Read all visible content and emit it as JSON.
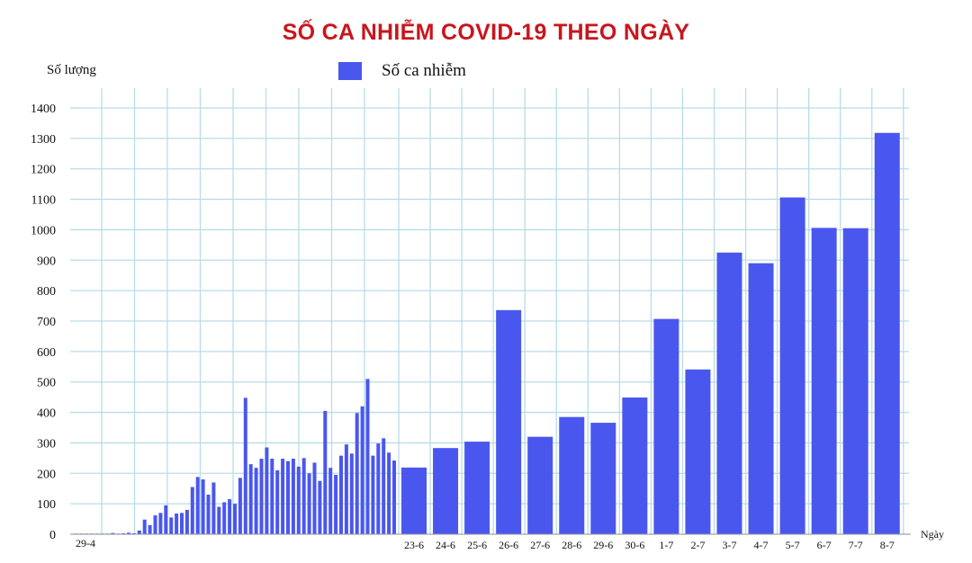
{
  "chart_data": {
    "type": "bar",
    "title": "SỐ CA NHIỄM COVID-19 THEO NGÀY",
    "ylabel": "Số lượng",
    "xlabel": "Ngày",
    "legend": "Số ca nhiễm",
    "ylim": [
      0,
      1400
    ],
    "yticks": [
      0,
      100,
      200,
      300,
      400,
      500,
      600,
      700,
      800,
      900,
      1000,
      1100,
      1200,
      1300,
      1400
    ],
    "grid": true,
    "bar_color": "#4a57ee",
    "early_start_label": "29-4",
    "early_values": [
      2,
      2,
      2,
      2,
      2,
      2,
      2,
      4,
      2,
      3,
      5,
      3,
      12,
      48,
      30,
      62,
      70,
      95,
      55,
      68,
      70,
      80,
      155,
      188,
      180,
      130,
      170,
      90,
      105,
      115,
      100,
      185,
      448,
      230,
      218,
      248,
      285,
      248,
      210,
      248,
      240,
      248,
      222,
      250,
      200,
      235,
      175,
      405,
      218,
      195,
      258,
      295,
      265,
      398,
      420,
      510,
      258,
      298,
      315,
      268,
      242
    ],
    "categories": [
      "23-6",
      "24-6",
      "25-6",
      "26-6",
      "27-6",
      "28-6",
      "29-6",
      "30-6",
      "1-7",
      "2-7",
      "3-7",
      "4-7",
      "5-7",
      "6-7",
      "7-7",
      "8-7"
    ],
    "values": [
      219,
      283,
      304,
      736,
      320,
      385,
      366,
      449,
      707,
      541,
      925,
      890,
      1106,
      1006,
      1005,
      1318
    ]
  }
}
